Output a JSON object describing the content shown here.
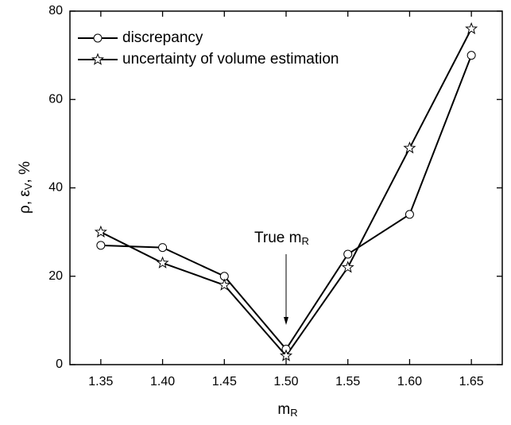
{
  "chart_data": {
    "type": "line",
    "x": [
      1.35,
      1.4,
      1.45,
      1.5,
      1.55,
      1.6,
      1.65
    ],
    "series": [
      {
        "name": "discrepancy",
        "color": "#000000",
        "marker": "circle",
        "values": [
          27,
          26.5,
          20,
          3.5,
          25,
          34,
          70
        ]
      },
      {
        "name": "uncertainty of volume estimation",
        "color": "#000000",
        "marker": "star",
        "values": [
          30,
          23,
          18,
          2,
          22,
          49,
          76
        ]
      }
    ],
    "xlabel": {
      "main": "m",
      "sub": "R"
    },
    "ylabel": {
      "parts": [
        "ρ, ε",
        "V",
        ", %"
      ]
    },
    "annotation": {
      "main": "True m",
      "sub": "R",
      "xy": [
        1.5,
        9
      ],
      "xytext": [
        1.5,
        25
      ]
    },
    "xlim": [
      1.325,
      1.675
    ],
    "xticks": [
      1.35,
      {
        "value": 1.4,
        "label": "1.40"
      },
      1.45,
      {
        "value": 1.5,
        "label": "1.50"
      },
      1.55,
      {
        "value": 1.6,
        "label": "1.60"
      },
      1.65
    ],
    "ylim": [
      0,
      80
    ],
    "yticks": [
      0,
      20,
      40,
      60,
      80
    ],
    "legend": "upper left",
    "grid": false
  }
}
